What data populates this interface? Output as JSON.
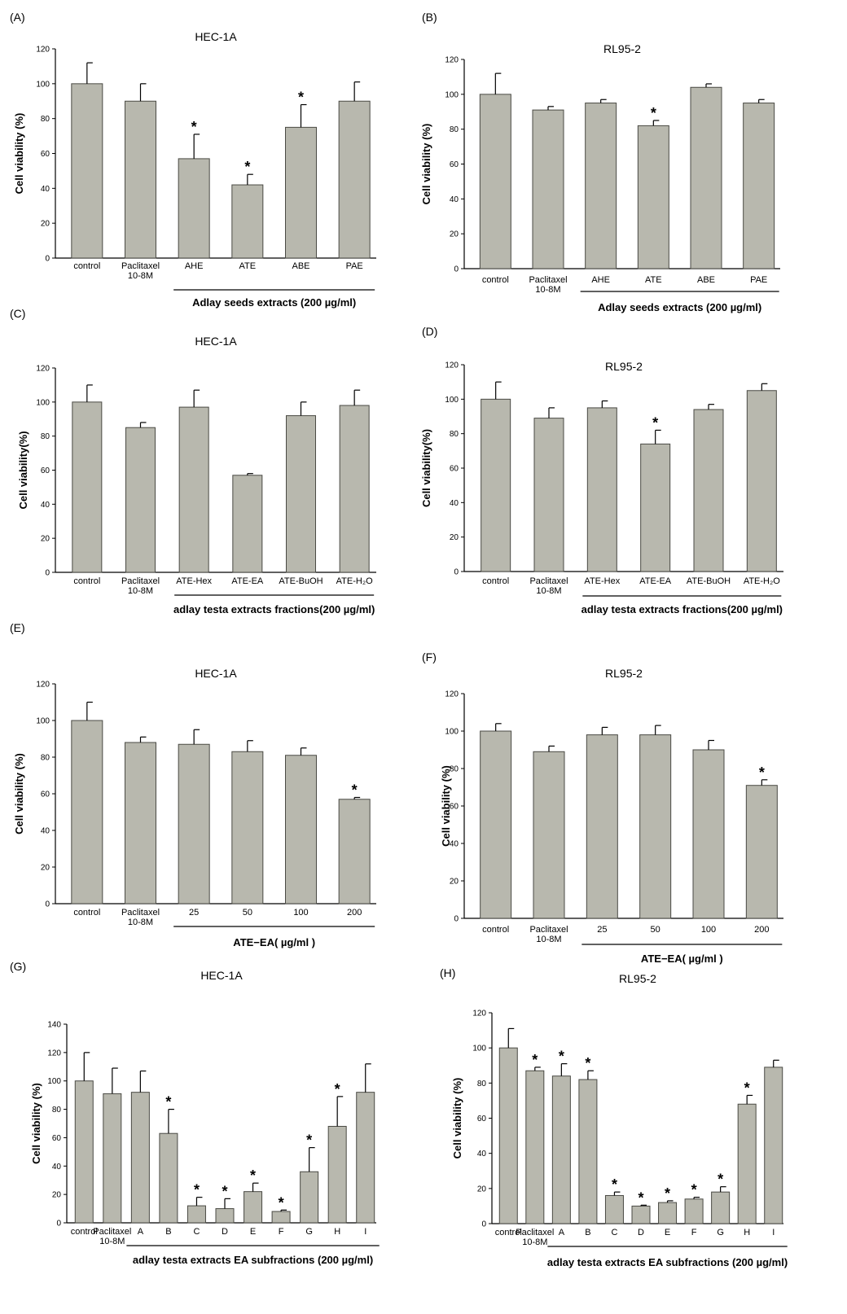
{
  "figure": {
    "colors": {
      "bar": "#b8b8ae",
      "bar_stroke": "#4a4a44",
      "axis": "#000000"
    },
    "panels": [
      {
        "letter": "(A)"
      },
      {
        "letter": "(B)"
      },
      {
        "letter": "(C)"
      },
      {
        "letter": "(D)"
      },
      {
        "letter": "(E)"
      },
      {
        "letter": "(F)"
      },
      {
        "letter": "(G)"
      },
      {
        "letter": "(H)"
      }
    ]
  },
  "chart_data": [
    {
      "type": "bar",
      "panel": "(A)",
      "title": "HEC-1A",
      "ylabel": "Cell viability (%)",
      "ylim": [
        0,
        120
      ],
      "yticks": [
        0,
        20,
        40,
        60,
        80,
        100,
        120
      ],
      "categories": [
        "control",
        "Paclitaxel\n10-8M",
        "AHE",
        "ATE",
        "ABE",
        "PAE"
      ],
      "values": [
        100,
        90,
        57,
        42,
        75,
        90
      ],
      "errors": [
        12,
        10,
        14,
        6,
        13,
        11
      ],
      "significant": [
        false,
        false,
        true,
        true,
        true,
        false
      ],
      "group_label": "Adlay seeds extracts (200 µg/ml)"
    },
    {
      "type": "bar",
      "panel": "(B)",
      "title": "RL95-2",
      "ylabel": "Cell viability (%)",
      "ylim": [
        0,
        120
      ],
      "yticks": [
        0,
        20,
        40,
        60,
        80,
        100,
        120
      ],
      "categories": [
        "control",
        "Paclitaxel\n10-8M",
        "AHE",
        "ATE",
        "ABE",
        "PAE"
      ],
      "values": [
        100,
        91,
        95,
        82,
        104,
        95
      ],
      "errors": [
        12,
        2,
        2,
        3,
        2,
        2
      ],
      "significant": [
        false,
        false,
        false,
        true,
        false,
        false
      ],
      "group_label": "Adlay seeds extracts (200 µg/ml)"
    },
    {
      "type": "bar",
      "panel": "(C)",
      "title": "HEC-1A",
      "ylabel": "Cell viability(%)",
      "ylim": [
        0,
        120
      ],
      "yticks": [
        0,
        20,
        40,
        60,
        80,
        100,
        120
      ],
      "categories": [
        "control",
        "Paclitaxel\n10-8M",
        "ATE-Hex",
        "ATE-EA",
        "ATE-BuOH",
        "ATE-H₂O"
      ],
      "values": [
        100,
        85,
        97,
        57,
        92,
        98
      ],
      "errors": [
        10,
        3,
        10,
        1,
        8,
        9
      ],
      "significant": [
        false,
        false,
        false,
        false,
        false,
        false
      ],
      "group_label": "adlay testa extracts fractions(200 µg/ml)"
    },
    {
      "type": "bar",
      "panel": "(D)",
      "title": "RL95-2",
      "ylabel": "Cell viability(%)",
      "ylim": [
        0,
        120
      ],
      "yticks": [
        0,
        20,
        40,
        60,
        80,
        100,
        120
      ],
      "categories": [
        "control",
        "Paclitaxel\n10-8M",
        "ATE-Hex",
        "ATE-EA",
        "ATE-BuOH",
        "ATE-H₂O"
      ],
      "values": [
        100,
        89,
        95,
        74,
        94,
        105
      ],
      "errors": [
        10,
        6,
        4,
        8,
        3,
        4
      ],
      "significant": [
        false,
        false,
        false,
        true,
        false,
        false
      ],
      "group_label": "adlay testa extracts fractions(200 µg/ml)"
    },
    {
      "type": "bar",
      "panel": "(E)",
      "title": "HEC-1A",
      "ylabel": "Cell viability (%)",
      "ylim": [
        0,
        120
      ],
      "yticks": [
        0,
        20,
        40,
        60,
        80,
        100,
        120
      ],
      "categories": [
        "control",
        "Paclitaxel\n10-8M",
        "25",
        "50",
        "100",
        "200"
      ],
      "values": [
        100,
        88,
        87,
        83,
        81,
        57
      ],
      "errors": [
        10,
        3,
        8,
        6,
        4,
        1
      ],
      "significant": [
        false,
        false,
        false,
        false,
        false,
        true
      ],
      "group_label": "ATE−EA( µg/ml )"
    },
    {
      "type": "bar",
      "panel": "(F)",
      "title": "RL95-2",
      "ylabel": "Cell viability (%)",
      "ylim": [
        0,
        120
      ],
      "yticks": [
        0,
        20,
        40,
        60,
        80,
        100,
        120
      ],
      "categories": [
        "control",
        "Paclitaxel\n10-8M",
        "25",
        "50",
        "100",
        "200"
      ],
      "values": [
        100,
        89,
        98,
        98,
        90,
        71
      ],
      "errors": [
        4,
        3,
        4,
        5,
        5,
        3
      ],
      "significant": [
        false,
        false,
        false,
        false,
        false,
        true
      ],
      "group_label": "ATE−EA( µg/ml )"
    },
    {
      "type": "bar",
      "panel": "(G)",
      "title": "HEC-1A",
      "ylabel": "Cell viability (%)",
      "ylim": [
        0,
        140
      ],
      "yticks": [
        0,
        20,
        40,
        60,
        80,
        100,
        120,
        140
      ],
      "categories": [
        "control",
        "Paclitaxel\n10-8M",
        "A",
        "B",
        "C",
        "D",
        "E",
        "F",
        "G",
        "H",
        "I"
      ],
      "values": [
        100,
        91,
        92,
        63,
        12,
        10,
        22,
        8,
        36,
        68,
        92
      ],
      "errors": [
        20,
        18,
        15,
        17,
        6,
        7,
        6,
        1,
        17,
        21,
        20
      ],
      "significant": [
        false,
        false,
        false,
        true,
        true,
        true,
        true,
        true,
        true,
        true,
        false
      ],
      "group_label": "adlay testa extracts EA subfractions (200 µg/ml)"
    },
    {
      "type": "bar",
      "panel": "(H)",
      "title": "RL95-2",
      "ylabel": "Cell viability (%)",
      "ylim": [
        0,
        120
      ],
      "yticks": [
        0,
        20,
        40,
        60,
        80,
        100,
        120
      ],
      "categories": [
        "control",
        "Paclitaxel\n10-8M",
        "A",
        "B",
        "C",
        "D",
        "E",
        "F",
        "G",
        "H",
        "I"
      ],
      "values": [
        100,
        87,
        84,
        82,
        16,
        10,
        12,
        14,
        18,
        68,
        89
      ],
      "errors": [
        11,
        2,
        7,
        5,
        2,
        0.5,
        1,
        1,
        3,
        5,
        4
      ],
      "significant": [
        false,
        true,
        true,
        true,
        true,
        true,
        true,
        true,
        true,
        true,
        false
      ],
      "group_label": "adlay testa extracts EA subfractions (200 µg/ml)"
    }
  ]
}
